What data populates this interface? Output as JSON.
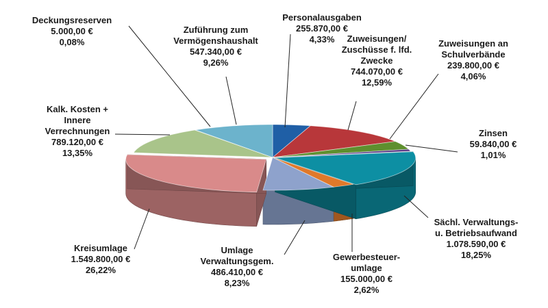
{
  "chart_data": {
    "type": "pie",
    "style": "3d-exploded-pie",
    "slices": [
      {
        "id": "personal",
        "label_lines": [
          "Personalausgaben"
        ],
        "value": "255.870,00 €",
        "percent_label": "4,33%",
        "percent": 4.33,
        "color": "#1f5fa6"
      },
      {
        "id": "zuweisungen-lfd",
        "label_lines": [
          "Zuweisungen/",
          "Zuschüsse f. lfd.",
          "Zwecke"
        ],
        "value": "744.070,00 €",
        "percent_label": "12,59%",
        "percent": 12.59,
        "color": "#b8373a"
      },
      {
        "id": "schulverbaende",
        "label_lines": [
          "Zuweisungen an",
          "Schulverbände"
        ],
        "value": "239.800,00 €",
        "percent_label": "4,06%",
        "percent": 4.06,
        "color": "#5e8f2e"
      },
      {
        "id": "zinsen",
        "label_lines": [
          "Zinsen"
        ],
        "value": "59.840,00 €",
        "percent_label": "1,01%",
        "percent": 1.01,
        "color": "#5a3a86"
      },
      {
        "id": "saechl",
        "label_lines": [
          "Sächl. Verwaltungs-",
          "u. Betriebsaufwand"
        ],
        "value": "1.078.590,00 €",
        "percent_label": "18,25%",
        "percent": 18.25,
        "color": "#0d8fa3"
      },
      {
        "id": "gewerbesteuer",
        "label_lines": [
          "Gewerbesteuer-",
          "umlage"
        ],
        "value": "155.000,00 €",
        "percent_label": "2,62%",
        "percent": 2.62,
        "color": "#e0792a"
      },
      {
        "id": "umlage-verw",
        "label_lines": [
          "Umlage",
          "Verwaltungsgem."
        ],
        "value": "486.410,00 €",
        "percent_label": "8,23%",
        "percent": 8.23,
        "color": "#8ea2cc"
      },
      {
        "id": "kreisumlage",
        "label_lines": [
          "Kreisumlage"
        ],
        "value": "1.549.800,00 €",
        "percent_label": "26,22%",
        "percent": 26.22,
        "color": "#d98a8a"
      },
      {
        "id": "kalk-kosten",
        "label_lines": [
          "Kalk. Kosten +",
          "Innere",
          "Verrechnungen"
        ],
        "value": "789.120,00 €",
        "percent_label": "13,35%",
        "percent": 13.35,
        "color": "#a9c48a"
      },
      {
        "id": "deckungsreserven",
        "label_lines": [
          "Deckungsreserven"
        ],
        "value": "5.000,00 €",
        "percent_label": "0,08%",
        "percent": 0.08,
        "color": "#c9c9c9"
      },
      {
        "id": "zufuehrung",
        "label_lines": [
          "Zuführung zum",
          "Vermögenshaushalt"
        ],
        "value": "547.340,00 €",
        "percent_label": "9,26%",
        "percent": 9.26,
        "color": "#6cb3cc"
      }
    ]
  }
}
